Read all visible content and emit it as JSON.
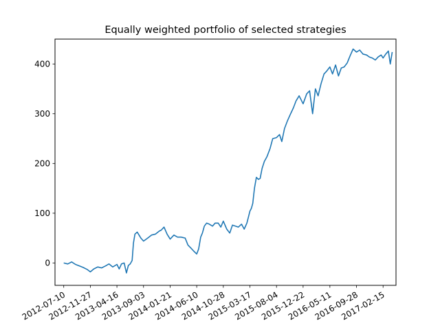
{
  "chart_data": {
    "type": "line",
    "title": "Equally weighted portfolio of selected strategies",
    "xlabel": "",
    "ylabel": "",
    "x_range": [
      "2012-05-25",
      "2017-04-24"
    ],
    "ylim": [
      -45,
      450
    ],
    "grid": false,
    "legend": "none",
    "x_ticks": [
      "2012-07-10",
      "2012-11-27",
      "2013-04-16",
      "2013-09-03",
      "2014-01-21",
      "2014-06-10",
      "2014-10-28",
      "2015-03-17",
      "2015-08-04",
      "2015-12-22",
      "2016-05-11",
      "2016-09-28",
      "2017-02-15"
    ],
    "y_ticks": [
      0,
      100,
      200,
      300,
      400
    ],
    "series": [
      {
        "color": "#1f77b4",
        "x": [
          "2012-07-10",
          "2012-07-31",
          "2012-08-21",
          "2012-09-10",
          "2012-10-01",
          "2012-10-20",
          "2012-11-10",
          "2012-11-27",
          "2012-12-15",
          "2013-01-05",
          "2013-01-25",
          "2013-02-15",
          "2013-03-05",
          "2013-03-25",
          "2013-04-16",
          "2013-04-28",
          "2013-05-10",
          "2013-05-24",
          "2013-06-05",
          "2013-06-15",
          "2013-06-25",
          "2013-07-05",
          "2013-07-12",
          "2013-07-20",
          "2013-08-01",
          "2013-08-20",
          "2013-09-03",
          "2013-09-25",
          "2013-10-15",
          "2013-11-05",
          "2013-11-25",
          "2013-12-05",
          "2013-12-20",
          "2014-01-05",
          "2014-01-21",
          "2014-02-10",
          "2014-03-01",
          "2014-03-20",
          "2014-04-10",
          "2014-04-25",
          "2014-05-10",
          "2014-05-25",
          "2014-06-10",
          "2014-06-20",
          "2014-07-01",
          "2014-07-10",
          "2014-07-20",
          "2014-08-01",
          "2014-08-15",
          "2014-09-01",
          "2014-09-15",
          "2014-10-01",
          "2014-10-15",
          "2014-10-28",
          "2014-11-15",
          "2014-12-01",
          "2014-12-15",
          "2015-01-01",
          "2015-01-15",
          "2015-02-01",
          "2015-02-15",
          "2015-03-01",
          "2015-03-17",
          "2015-03-25",
          "2015-04-01",
          "2015-04-10",
          "2015-04-20",
          "2015-05-01",
          "2015-05-10",
          "2015-05-20",
          "2015-06-01",
          "2015-06-15",
          "2015-07-01",
          "2015-07-15",
          "2015-08-04",
          "2015-08-20",
          "2015-09-01",
          "2015-09-15",
          "2015-10-01",
          "2015-10-15",
          "2015-11-01",
          "2015-11-15",
          "2015-12-01",
          "2015-12-22",
          "2016-01-10",
          "2016-01-25",
          "2016-02-10",
          "2016-02-25",
          "2016-03-10",
          "2016-03-25",
          "2016-04-10",
          "2016-04-25",
          "2016-05-11",
          "2016-05-25",
          "2016-06-10",
          "2016-06-25",
          "2016-07-10",
          "2016-07-25",
          "2016-08-10",
          "2016-08-25",
          "2016-09-10",
          "2016-09-28",
          "2016-10-15",
          "2016-11-01",
          "2016-11-20",
          "2016-12-05",
          "2016-12-20",
          "2017-01-05",
          "2017-01-20",
          "2017-02-05",
          "2017-02-15",
          "2017-03-01",
          "2017-03-15",
          "2017-03-25",
          "2017-04-04"
        ],
        "y": [
          0,
          -2,
          2,
          -3,
          -6,
          -9,
          -13,
          -18,
          -12,
          -8,
          -10,
          -6,
          -2,
          -8,
          -3,
          -12,
          -2,
          0,
          -20,
          -5,
          -2,
          5,
          40,
          58,
          62,
          50,
          44,
          50,
          56,
          58,
          64,
          66,
          72,
          58,
          48,
          56,
          52,
          52,
          50,
          36,
          30,
          24,
          18,
          28,
          52,
          60,
          74,
          80,
          78,
          74,
          80,
          80,
          72,
          84,
          68,
          60,
          76,
          74,
          72,
          78,
          68,
          80,
          104,
          110,
          120,
          150,
          172,
          168,
          170,
          190,
          204,
          214,
          230,
          250,
          252,
          258,
          244,
          270,
          286,
          298,
          312,
          326,
          336,
          320,
          340,
          346,
          300,
          350,
          336,
          360,
          380,
          386,
          394,
          380,
          398,
          376,
          392,
          394,
          402,
          416,
          430,
          424,
          428,
          420,
          418,
          414,
          412,
          408,
          414,
          418,
          412,
          420,
          426,
          400,
          424
        ]
      }
    ]
  }
}
